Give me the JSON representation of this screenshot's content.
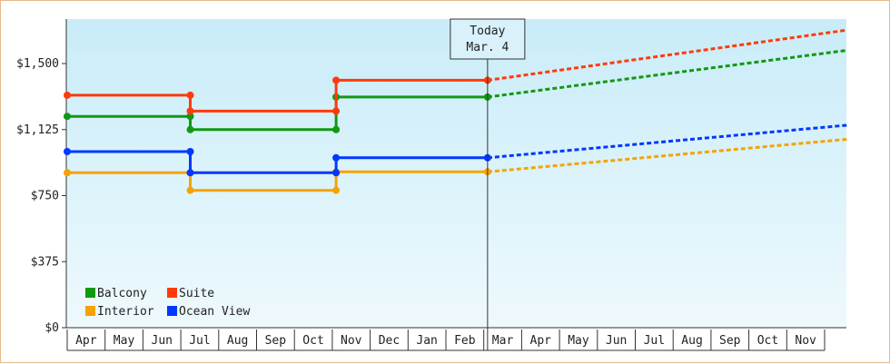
{
  "chart_data": {
    "type": "line",
    "step": true,
    "ylim": [
      0,
      1500
    ],
    "y_ticks": [
      {
        "value": 0,
        "label": "$0"
      },
      {
        "value": 375,
        "label": "$375"
      },
      {
        "value": 750,
        "label": "$750"
      },
      {
        "value": 1125,
        "label": "$1,125"
      },
      {
        "value": 1500,
        "label": "$1,500"
      }
    ],
    "x_months": [
      "Apr",
      "May",
      "Jun",
      "Jul",
      "Aug",
      "Sep",
      "Oct",
      "Nov",
      "Dec",
      "Jan",
      "Feb",
      "Mar",
      "Apr",
      "May",
      "Jun",
      "Jul",
      "Aug",
      "Sep",
      "Oct",
      "Nov"
    ],
    "x_range_month_index": [
      0,
      20.6
    ],
    "today": {
      "line1": "Today",
      "line2": "Mar. 4",
      "month_index": 11.1
    },
    "grid": false,
    "legend_position": "bottom-left",
    "series": [
      {
        "name": "Balcony",
        "color": "#119911",
        "history": [
          [
            0,
            1200
          ],
          [
            3.25,
            1200
          ],
          [
            3.25,
            1125
          ],
          [
            7.1,
            1125
          ],
          [
            7.1,
            1310
          ],
          [
            11.1,
            1310
          ]
        ],
        "forecast": [
          [
            11.1,
            1310
          ],
          [
            20.6,
            1575
          ]
        ]
      },
      {
        "name": "Suite",
        "color": "#ff3a0a",
        "history": [
          [
            0,
            1320
          ],
          [
            3.25,
            1320
          ],
          [
            3.25,
            1230
          ],
          [
            7.1,
            1230
          ],
          [
            7.1,
            1405
          ],
          [
            11.1,
            1405
          ]
        ],
        "forecast": [
          [
            11.1,
            1405
          ],
          [
            20.6,
            1690
          ]
        ]
      },
      {
        "name": "Interior",
        "color": "#f5a300",
        "history": [
          [
            0,
            880
          ],
          [
            3.25,
            880
          ],
          [
            3.25,
            780
          ],
          [
            7.1,
            780
          ],
          [
            7.1,
            885
          ],
          [
            11.1,
            885
          ]
        ],
        "forecast": [
          [
            11.1,
            885
          ],
          [
            20.6,
            1070
          ]
        ]
      },
      {
        "name": "Ocean View",
        "color": "#0038ff",
        "history": [
          [
            0,
            1000
          ],
          [
            3.25,
            1000
          ],
          [
            3.25,
            880
          ],
          [
            7.1,
            880
          ],
          [
            7.1,
            965
          ],
          [
            11.1,
            965
          ]
        ],
        "forecast": [
          [
            11.1,
            965
          ],
          [
            20.6,
            1150
          ]
        ]
      }
    ]
  }
}
